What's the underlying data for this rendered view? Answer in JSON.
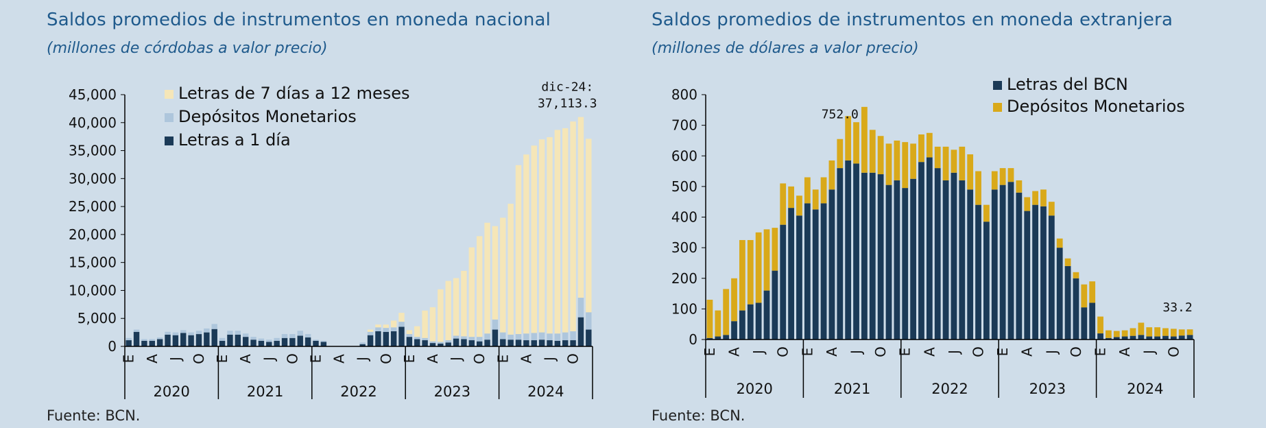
{
  "panels": {
    "left": {
      "title": "Saldos promedios de instrumentos en moneda nacional",
      "subtitle": "(millones de córdobas a valor precio)",
      "source": "Fuente: BCN."
    },
    "right": {
      "title": "Saldos promedios de instrumentos en moneda extranjera",
      "subtitle": "(millones de dólares a valor precio)",
      "source": "Fuente: BCN."
    }
  },
  "chart_data": [
    {
      "type": "bar",
      "stacked": true,
      "title": "Saldos promedios de instrumentos en moneda nacional",
      "subtitle": "(millones de córdobas a valor precio)",
      "ylim": [
        0,
        45000
      ],
      "yticks": [
        0,
        5000,
        10000,
        15000,
        20000,
        25000,
        30000,
        35000,
        40000,
        45000
      ],
      "ytick_labels": [
        "0",
        "5,000",
        "10,000",
        "15,000",
        "20,000",
        "25,000",
        "30,000",
        "35,000",
        "40,000",
        "45,000"
      ],
      "years": [
        "2020",
        "2021",
        "2022",
        "2023",
        "2024"
      ],
      "month_labels": [
        "E",
        "A",
        "J",
        "O"
      ],
      "legend_position": "top-left",
      "series": [
        {
          "name": "Letras a 1 día",
          "color": "#1b3a57",
          "values": [
            1100,
            2600,
            1000,
            1000,
            1300,
            2100,
            2000,
            2400,
            2000,
            2200,
            2500,
            3100,
            1000,
            2100,
            2100,
            1700,
            1200,
            1000,
            800,
            1000,
            1500,
            1500,
            1900,
            1600,
            1000,
            800,
            50,
            0,
            0,
            0,
            400,
            2000,
            2700,
            2600,
            2700,
            3500,
            1700,
            1300,
            1100,
            600,
            500,
            700,
            1400,
            1300,
            1100,
            900,
            1200,
            3000,
            1300,
            1200,
            1200,
            1100,
            1100,
            1200,
            1100,
            1000,
            1100,
            1100,
            5200,
            3000
          ]
        },
        {
          "name": "Depósitos Monetarios",
          "color": "#aec6dc",
          "values": [
            400,
            400,
            300,
            300,
            300,
            500,
            500,
            500,
            500,
            600,
            700,
            900,
            500,
            700,
            700,
            600,
            500,
            400,
            400,
            500,
            700,
            700,
            900,
            600,
            200,
            200,
            30,
            0,
            0,
            0,
            300,
            600,
            700,
            700,
            700,
            900,
            500,
            400,
            400,
            300,
            300,
            400,
            500,
            500,
            600,
            800,
            1100,
            1800,
            1200,
            900,
            1000,
            1200,
            1300,
            1300,
            1200,
            1300,
            1400,
            1600,
            3500,
            3100
          ]
        },
        {
          "name": "Letras de 7 días a 12 meses",
          "color": "#f5e6b8",
          "values": [
            0,
            0,
            0,
            0,
            0,
            0,
            0,
            0,
            0,
            0,
            0,
            0,
            0,
            0,
            0,
            0,
            0,
            0,
            0,
            0,
            0,
            0,
            0,
            0,
            0,
            0,
            0,
            0,
            0,
            0,
            0,
            400,
            500,
            600,
            1200,
            1600,
            700,
            1900,
            4900,
            6100,
            9400,
            10600,
            10300,
            11700,
            16000,
            18000,
            19800,
            16700,
            20500,
            23400,
            30200,
            32000,
            33500,
            34500,
            35100,
            36400,
            36500,
            37500,
            32300,
            31013.3
          ]
        }
      ],
      "annotations": [
        {
          "label": "dic-24:",
          "value_label": "37,113.3"
        }
      ]
    },
    {
      "type": "bar",
      "stacked": true,
      "title": "Saldos promedios de instrumentos en moneda extranjera",
      "subtitle": "(millones de dólares a valor precio)",
      "ylim": [
        0,
        800
      ],
      "yticks": [
        0,
        100,
        200,
        300,
        400,
        500,
        600,
        700,
        800
      ],
      "ytick_labels": [
        "0",
        "100",
        "200",
        "300",
        "400",
        "500",
        "600",
        "700",
        "800"
      ],
      "years": [
        "2020",
        "2021",
        "2022",
        "2023",
        "2024"
      ],
      "month_labels": [
        "E",
        "A",
        "J",
        "O"
      ],
      "legend_position": "top-right",
      "series": [
        {
          "name": "Letras del BCN",
          "color": "#1b3a57",
          "values": [
            5,
            10,
            15,
            60,
            95,
            115,
            120,
            160,
            225,
            375,
            430,
            405,
            445,
            425,
            445,
            490,
            560,
            585,
            575,
            545,
            545,
            540,
            505,
            520,
            495,
            525,
            580,
            595,
            560,
            520,
            545,
            520,
            490,
            440,
            385,
            490,
            505,
            515,
            480,
            420,
            440,
            435,
            405,
            300,
            240,
            200,
            105,
            120,
            20,
            5,
            8,
            10,
            12,
            15,
            10,
            10,
            12,
            10,
            13,
            15
          ]
        },
        {
          "name": "Depósitos Monetarios",
          "color": "#d9a91a",
          "values": [
            125,
            85,
            150,
            140,
            230,
            210,
            230,
            200,
            140,
            135,
            70,
            65,
            85,
            65,
            85,
            95,
            95,
            145,
            135,
            215,
            140,
            125,
            135,
            130,
            150,
            115,
            90,
            80,
            70,
            110,
            75,
            110,
            115,
            110,
            55,
            60,
            55,
            45,
            40,
            45,
            45,
            55,
            45,
            30,
            25,
            20,
            75,
            70,
            55,
            25,
            20,
            20,
            25,
            40,
            30,
            30,
            25,
            25,
            20,
            18.2
          ]
        }
      ],
      "annotations": [
        {
          "value_label": "752.0"
        },
        {
          "value_label": "33.2"
        }
      ]
    }
  ]
}
